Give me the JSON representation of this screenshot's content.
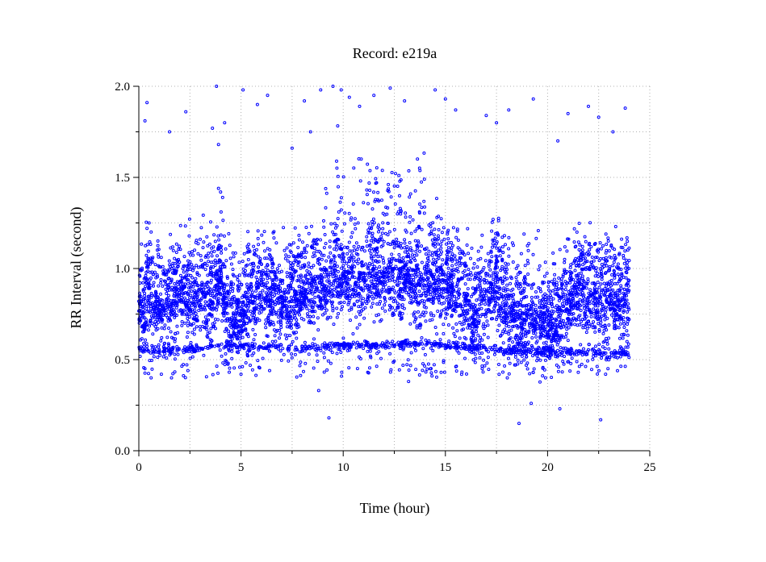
{
  "chart_data": {
    "type": "scatter",
    "title": "Record:  e219a",
    "xlabel": "Time (hour)",
    "ylabel": "RR Interval (second)",
    "xlim": [
      0,
      25
    ],
    "ylim": [
      0.0,
      2.0
    ],
    "x_ticks": [
      0,
      5,
      10,
      15,
      20,
      25
    ],
    "x_tick_labels": [
      "0",
      "5",
      "10",
      "15",
      "20",
      "25"
    ],
    "y_ticks": [
      0.0,
      0.5,
      1.0,
      1.5,
      2.0
    ],
    "y_tick_labels": [
      "0.0",
      "0.5",
      "1.0",
      "1.5",
      "2.0"
    ],
    "grid": true,
    "marker": "open-circle",
    "color": "#0000ff",
    "series": [
      {
        "name": "",
        "x_range": [
          0,
          24
        ],
        "trend": [
          [
            0.0,
            0.8
          ],
          [
            0.5,
            0.82
          ],
          [
            1.0,
            0.78
          ],
          [
            1.5,
            0.8
          ],
          [
            2.0,
            0.84
          ],
          [
            2.5,
            0.8
          ],
          [
            3.0,
            0.85
          ],
          [
            3.5,
            0.8
          ],
          [
            4.0,
            0.95
          ],
          [
            4.3,
            0.75
          ],
          [
            5.0,
            0.72
          ],
          [
            5.5,
            0.82
          ],
          [
            6.0,
            0.88
          ],
          [
            6.5,
            0.82
          ],
          [
            7.0,
            0.78
          ],
          [
            7.5,
            0.82
          ],
          [
            8.0,
            0.85
          ],
          [
            8.5,
            0.88
          ],
          [
            9.0,
            0.9
          ],
          [
            9.5,
            0.92
          ],
          [
            10.0,
            0.93
          ],
          [
            10.5,
            0.92
          ],
          [
            11.0,
            0.95
          ],
          [
            11.5,
            0.95
          ],
          [
            12.0,
            0.96
          ],
          [
            12.5,
            0.94
          ],
          [
            13.0,
            0.95
          ],
          [
            13.5,
            0.94
          ],
          [
            14.0,
            0.9
          ],
          [
            14.5,
            0.92
          ],
          [
            15.0,
            0.88
          ],
          [
            15.5,
            0.85
          ],
          [
            16.0,
            0.8
          ],
          [
            16.5,
            0.7
          ],
          [
            17.0,
            0.8
          ],
          [
            17.5,
            0.9
          ],
          [
            18.0,
            0.8
          ],
          [
            18.5,
            0.7
          ],
          [
            19.0,
            0.72
          ],
          [
            19.5,
            0.7
          ],
          [
            20.0,
            0.68
          ],
          [
            20.5,
            0.7
          ],
          [
            21.0,
            0.78
          ],
          [
            21.5,
            0.85
          ],
          [
            22.0,
            0.82
          ],
          [
            22.5,
            0.8
          ],
          [
            23.0,
            0.82
          ],
          [
            23.5,
            0.8
          ],
          [
            24.0,
            0.82
          ]
        ],
        "lower_band": [
          [
            0,
            0.56
          ],
          [
            2,
            0.55
          ],
          [
            4,
            0.57
          ],
          [
            6,
            0.57
          ],
          [
            8,
            0.56
          ],
          [
            10,
            0.58
          ],
          [
            12,
            0.58
          ],
          [
            14,
            0.59
          ],
          [
            16,
            0.57
          ],
          [
            18,
            0.55
          ],
          [
            20,
            0.54
          ],
          [
            22,
            0.54
          ],
          [
            24,
            0.53
          ]
        ],
        "outliers": [
          [
            0.3,
            1.81
          ],
          [
            0.4,
            1.91
          ],
          [
            1.5,
            1.75
          ],
          [
            2.3,
            1.86
          ],
          [
            3.6,
            1.77
          ],
          [
            3.8,
            2.0
          ],
          [
            3.9,
            1.68
          ],
          [
            4.2,
            1.8
          ],
          [
            5.1,
            1.98
          ],
          [
            5.8,
            1.9
          ],
          [
            6.3,
            1.95
          ],
          [
            7.5,
            1.66
          ],
          [
            8.1,
            1.92
          ],
          [
            8.4,
            1.75
          ],
          [
            8.9,
            1.98
          ],
          [
            9.5,
            2.0
          ],
          [
            9.9,
            1.98
          ],
          [
            10.3,
            1.94
          ],
          [
            10.8,
            1.89
          ],
          [
            11.5,
            1.95
          ],
          [
            12.3,
            1.99
          ],
          [
            13.0,
            1.92
          ],
          [
            14.5,
            1.98
          ],
          [
            15.0,
            1.93
          ],
          [
            15.5,
            1.87
          ],
          [
            17.0,
            1.84
          ],
          [
            17.5,
            1.8
          ],
          [
            18.1,
            1.87
          ],
          [
            19.3,
            1.93
          ],
          [
            20.5,
            1.7
          ],
          [
            21.0,
            1.85
          ],
          [
            22.0,
            1.89
          ],
          [
            22.5,
            1.83
          ],
          [
            23.2,
            1.75
          ],
          [
            23.8,
            1.88
          ],
          [
            3.9,
            1.44
          ],
          [
            4.0,
            1.42
          ],
          [
            4.1,
            1.39
          ],
          [
            0.4,
            1.22
          ],
          [
            0.5,
            1.25
          ],
          [
            0.6,
            1.2
          ],
          [
            8.8,
            0.33
          ],
          [
            9.3,
            0.18
          ],
          [
            18.6,
            0.15
          ],
          [
            19.2,
            0.26
          ],
          [
            20.6,
            0.23
          ],
          [
            22.6,
            0.17
          ],
          [
            0.3,
            0.45
          ],
          [
            0.6,
            0.4
          ],
          [
            1.1,
            0.42
          ],
          [
            1.6,
            0.4
          ],
          [
            2.4,
            0.44
          ],
          [
            5.0,
            0.42
          ],
          [
            6.4,
            0.44
          ],
          [
            11.2,
            0.43
          ],
          [
            13.2,
            0.38
          ],
          [
            16.8,
            0.45
          ],
          [
            19.9,
            0.4
          ],
          [
            21.5,
            0.43
          ]
        ]
      }
    ]
  }
}
